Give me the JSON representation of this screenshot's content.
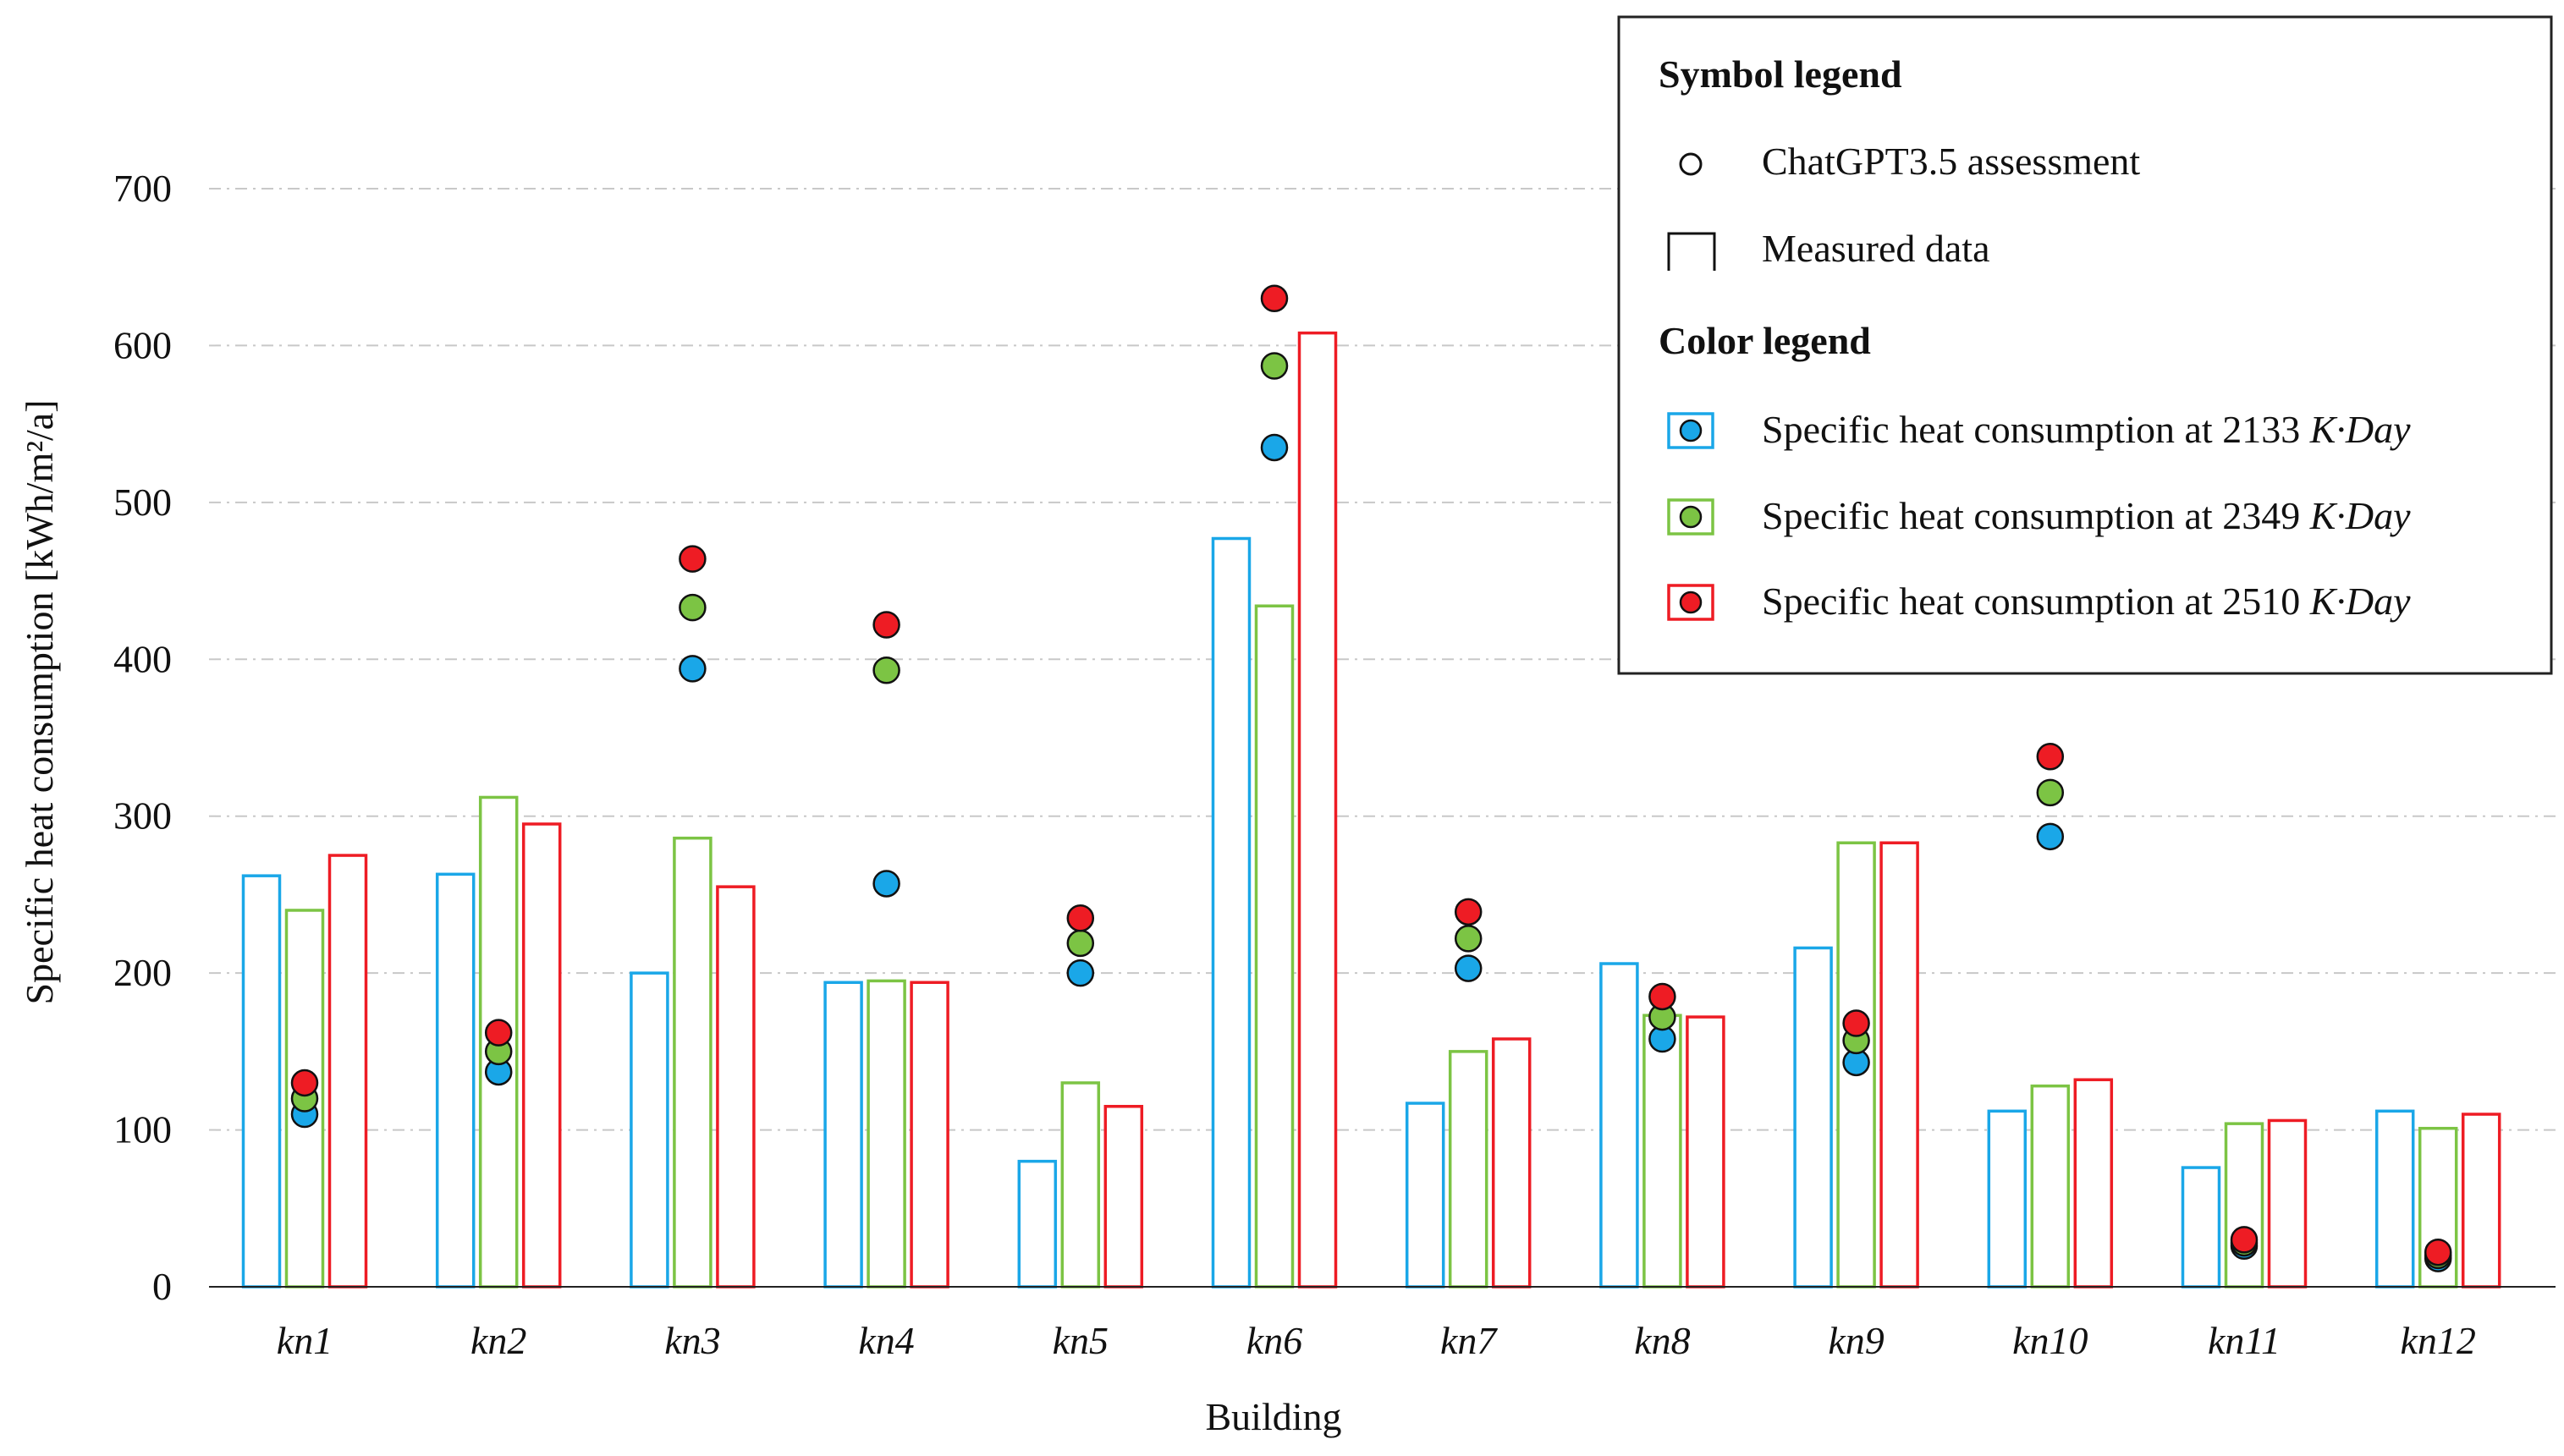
{
  "colors": {
    "c2133": "#1aa7e8",
    "c2349": "#7cc444",
    "c2510": "#ee1c24",
    "grid": "#c8c8c8",
    "axis": "#222222"
  },
  "legend": {
    "symbol_heading": "Symbol legend",
    "symbol_circle_label": "ChatGPT3.5 assessment",
    "symbol_bar_label": "Measured data",
    "color_heading": "Color legend",
    "color_prefix": "Specific heat consumption at",
    "color_unit": "K·Day",
    "items": [
      {
        "value": "2133",
        "color_key": "c2133"
      },
      {
        "value": "2349",
        "color_key": "c2349"
      },
      {
        "value": "2510",
        "color_key": "c2510"
      }
    ]
  },
  "chart_data": {
    "type": "bar",
    "title": "",
    "xlabel": "Building",
    "ylabel": "Specific heat consumption [kWh/m²/a]",
    "ylim": [
      0,
      700
    ],
    "yticks": [
      "0",
      "100",
      "200",
      "300",
      "400",
      "500",
      "600",
      "700"
    ],
    "grid": true,
    "legend_position": "top-right",
    "categories": [
      "kn1",
      "kn2",
      "kn3",
      "kn4",
      "kn5",
      "kn6",
      "kn7",
      "kn8",
      "kn9",
      "kn10",
      "kn11",
      "kn12"
    ],
    "series": [
      {
        "name": "Measured data at 2133 K·Day",
        "kind": "bar",
        "color_key": "c2133",
        "values": [
          262,
          263,
          200,
          194,
          80,
          477,
          117,
          206,
          216,
          112,
          76,
          112
        ]
      },
      {
        "name": "Measured data at 2349 K·Day",
        "kind": "bar",
        "color_key": "c2349",
        "values": [
          240,
          312,
          286,
          195,
          130,
          434,
          150,
          173,
          283,
          128,
          104,
          101
        ]
      },
      {
        "name": "Measured data at 2510 K·Day",
        "kind": "bar",
        "color_key": "c2510",
        "values": [
          275,
          295,
          255,
          194,
          115,
          608,
          158,
          172,
          283,
          132,
          106,
          110
        ]
      },
      {
        "name": "ChatGPT3.5 assessment at 2133 K·Day",
        "kind": "point",
        "color_key": "c2133",
        "values": [
          110,
          137,
          394,
          257,
          200,
          535,
          203,
          158,
          143,
          287,
          26,
          18
        ]
      },
      {
        "name": "ChatGPT3.5 assessment at 2349 K·Day",
        "kind": "point",
        "color_key": "c2349",
        "values": [
          120,
          150,
          433,
          393,
          219,
          587,
          222,
          172,
          157,
          315,
          28,
          20
        ]
      },
      {
        "name": "ChatGPT3.5 assessment at 2510 K·Day",
        "kind": "point",
        "color_key": "c2510",
        "values": [
          130,
          162,
          464,
          422,
          235,
          630,
          239,
          185,
          168,
          338,
          30,
          22
        ]
      }
    ]
  }
}
